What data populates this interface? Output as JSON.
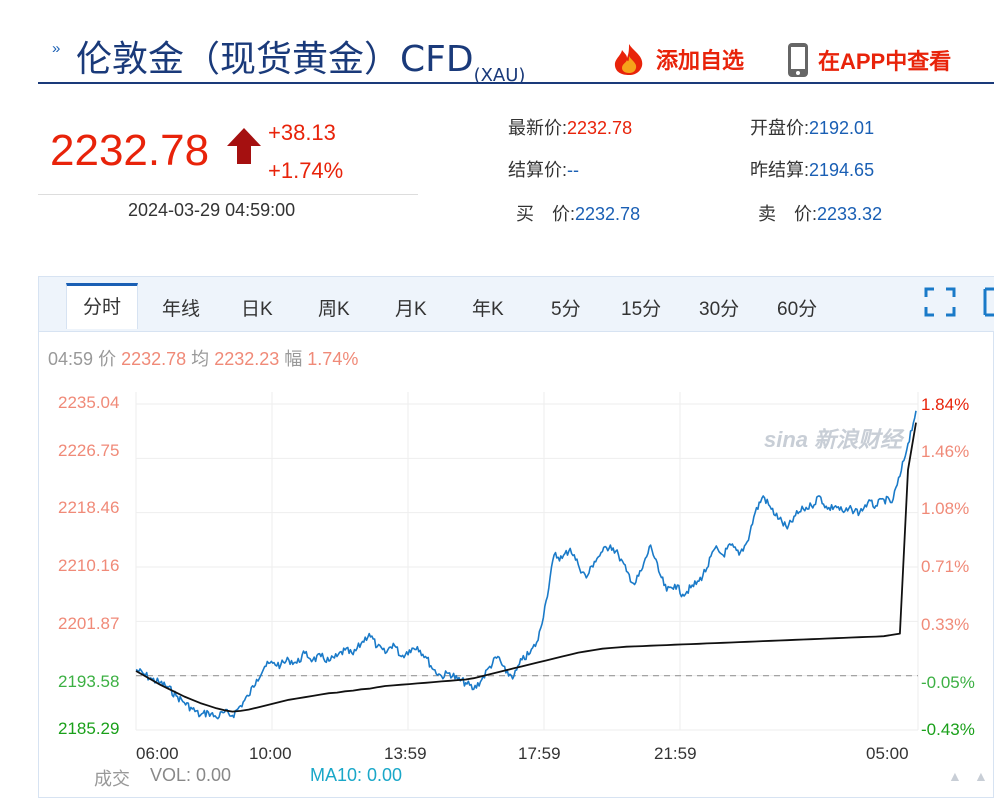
{
  "header": {
    "title_main": "伦敦金（现货黄金）CFD",
    "title_sub": "(XAU)",
    "add_watchlist_label": "添加自选",
    "view_app_label": "在APP中查看"
  },
  "quote": {
    "price": "2232.78",
    "change": "+38.13",
    "change_pct": "+1.74%",
    "timestamp": "2024-03-29 04:59:00",
    "latest_label": "最新价:",
    "latest_value": "2232.78",
    "open_label": "开盘价:",
    "open_value": "2192.01",
    "settle_label": "结算价:",
    "settle_value": "--",
    "prev_settle_label": "昨结算:",
    "prev_settle_value": "2194.65",
    "bid_label": "买　价:",
    "bid_value": "2232.78",
    "ask_label": "卖　价:",
    "ask_value": "2233.32"
  },
  "tabs": [
    "分时",
    "年线",
    "日K",
    "周K",
    "月K",
    "年K",
    "5分",
    "15分",
    "30分",
    "60分"
  ],
  "info": {
    "time": "04:59",
    "price_label": "价",
    "price_value": "2232.78",
    "avg_label": "均",
    "avg_value": "2232.23",
    "amp_label": "幅",
    "amp_value": "1.74%"
  },
  "volume": {
    "label": "成交",
    "vol_label": "VOL: 0.00",
    "ma_label": "MA10: 0.00"
  },
  "watermark": "sina 新浪财经",
  "colors": {
    "up": "#e8230a",
    "down": "#1aa01a",
    "line": "#1a7ac8",
    "avg": "#111111",
    "accent": "#1a5fb4"
  },
  "chart_data": {
    "type": "line",
    "y_ticks": [
      "2235.04",
      "2226.75",
      "2218.46",
      "2210.16",
      "2201.87",
      "2193.58",
      "2185.29"
    ],
    "y_pct_ticks": [
      "1.84%",
      "1.46%",
      "1.08%",
      "0.71%",
      "0.33%",
      "-0.05%",
      "-0.43%"
    ],
    "x_ticks": [
      "06:00",
      "10:00",
      "13:59",
      "17:59",
      "21:59",
      "05:00"
    ],
    "ylim": [
      2185.29,
      2235.04
    ],
    "baseline": 2193.58,
    "series": [
      {
        "values": [
          2194.5,
          2193.8,
          2193.0,
          2192.5,
          2191.8,
          2190.5,
          2189.5,
          2188.5,
          2187.5,
          2188.0,
          2187.2,
          2188.0,
          2187.5,
          2189.0,
          2190.5,
          2193.0,
          2195.0,
          2195.5,
          2195.2,
          2196.0,
          2195.5,
          2197.0,
          2196.0,
          2196.5,
          2195.8,
          2196.5,
          2197.5,
          2196.8,
          2198.5,
          2200.0,
          2198.0,
          2197.0,
          2198.5,
          2196.5,
          2197.5,
          2198.0,
          2196.5,
          2194.5,
          2193.5,
          2194.0,
          2193.0,
          2192.5,
          2191.5,
          2193.0,
          2195.0,
          2196.5,
          2194.0,
          2193.5,
          2196.0,
          2197.0,
          2199.0,
          2205.0,
          2212.0,
          2211.5,
          2213.0,
          2210.5,
          2208.5,
          2211.0,
          2212.5,
          2213.5,
          2212.0,
          2209.5,
          2207.5,
          2210.0,
          2213.5,
          2209.5,
          2206.5,
          2207.5,
          2206.0,
          2207.0,
          2208.0,
          2210.0,
          2213.0,
          2212.0,
          2213.5,
          2212.0,
          2214.0,
          2218.5,
          2221.0,
          2219.0,
          2217.5,
          2216.0,
          2218.0,
          2219.0,
          2219.5,
          2221.0,
          2219.0,
          2219.5,
          2218.5,
          2219.0,
          2218.5,
          2220.0,
          2219.5,
          2220.5,
          2220.0,
          2224.0,
          2229.0,
          2234.0
        ],
        "color": "#1a7ac8"
      },
      {
        "values": [
          2194.3,
          2193.6,
          2192.9,
          2192.2,
          2191.6,
          2191.0,
          2190.4,
          2189.9,
          2189.4,
          2189.0,
          2188.6,
          2188.3,
          2188.1,
          2188.2,
          2188.4,
          2188.7,
          2189.0,
          2189.3,
          2189.6,
          2189.9,
          2190.1,
          2190.3,
          2190.5,
          2190.7,
          2190.9,
          2191.0,
          2191.2,
          2191.3,
          2191.5,
          2191.6,
          2191.8,
          2192.0,
          2192.1,
          2192.2,
          2192.3,
          2192.4,
          2192.5,
          2192.6,
          2192.7,
          2192.8,
          2192.9,
          2193.0,
          2193.2,
          2193.5,
          2193.8,
          2194.1,
          2194.4,
          2194.7,
          2195.0,
          2195.3,
          2195.6,
          2195.9,
          2196.2,
          2196.5,
          2196.8,
          2197.1,
          2197.3,
          2197.5,
          2197.7,
          2197.8,
          2197.9,
          2198.0,
          2198.05,
          2198.1,
          2198.15,
          2198.2,
          2198.25,
          2198.3,
          2198.35,
          2198.4,
          2198.45,
          2198.5,
          2198.55,
          2198.6,
          2198.65,
          2198.7,
          2198.75,
          2198.8,
          2198.85,
          2198.9,
          2198.95,
          2199.0,
          2199.05,
          2199.1,
          2199.15,
          2199.2,
          2199.25,
          2199.3,
          2199.35,
          2199.4,
          2199.45,
          2199.5,
          2199.55,
          2199.6,
          2199.8,
          2200.0,
          2225.0,
          2232.2
        ],
        "color": "#111111"
      }
    ]
  }
}
